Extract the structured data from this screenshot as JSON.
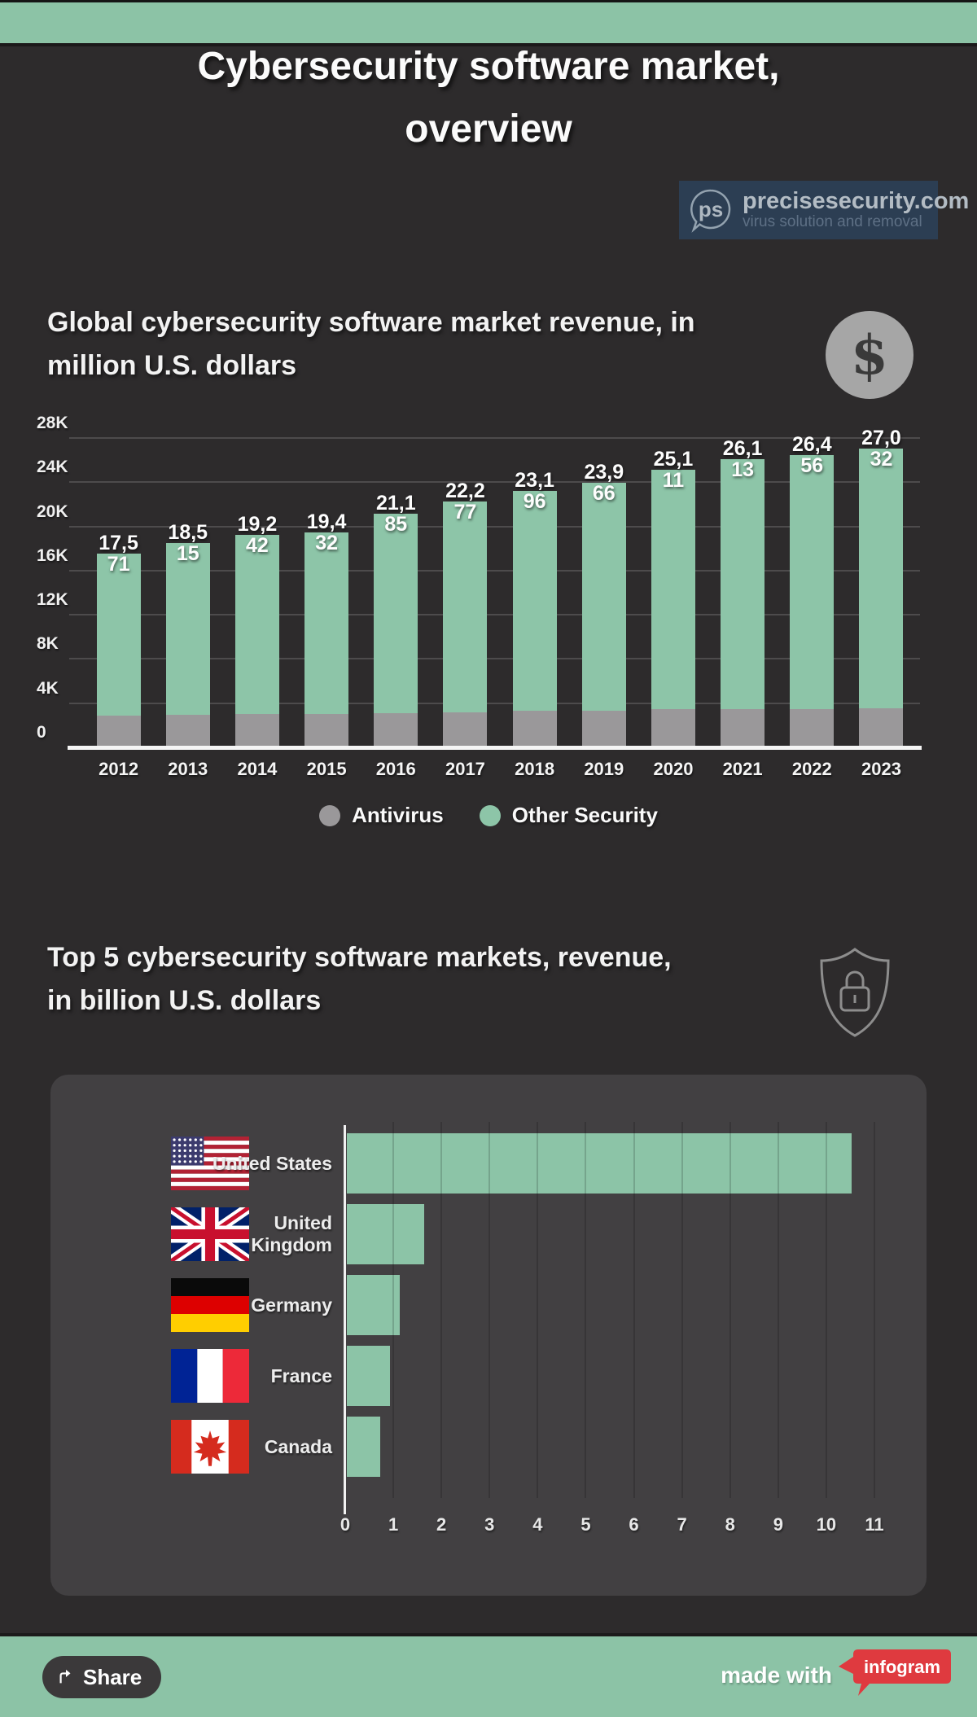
{
  "page": {
    "title": "Cybersecurity software market, overview"
  },
  "logo": {
    "monogram": "ps",
    "domain": "precisesecurity.com",
    "tagline": "virus solution and removal",
    "bg_color": "#2c3e53"
  },
  "section_revenue": {
    "title": "Global cybersecurity software market revenue, in million U.S. dollars",
    "icon": "dollar-icon"
  },
  "section_top5": {
    "title": "Top 5 cybersecurity software markets, revenue, in billion U.S. dollars",
    "icon": "shield-lock-icon"
  },
  "footer": {
    "share_label": "Share",
    "made_with": "made with",
    "badge_label": "infogram",
    "badge_color": "#df3a3f",
    "band_color": "#8cc3a6"
  },
  "chart_data": [
    {
      "type": "bar",
      "stacked": true,
      "title": "Global cybersecurity software market revenue, in million U.S. dollars",
      "categories": [
        "2012",
        "2013",
        "2014",
        "2015",
        "2016",
        "2017",
        "2018",
        "2019",
        "2020",
        "2021",
        "2022",
        "2023"
      ],
      "series": [
        {
          "name": "Antivirus",
          "color": "#9a989a",
          "values": [
            2900,
            2950,
            3000,
            3000,
            3100,
            3200,
            3300,
            3350,
            3450,
            3500,
            3500,
            3550
          ]
        },
        {
          "name": "Other Security",
          "color": "#8dc5a8",
          "values": [
            14671,
            15565,
            16242,
            16432,
            18085,
            19077,
            19896,
            20616,
            21661,
            22613,
            22956,
            23482
          ]
        }
      ],
      "totals": [
        17571,
        18515,
        19242,
        19432,
        21185,
        22277,
        23196,
        23966,
        25111,
        26113,
        26456,
        27032
      ],
      "total_labels": [
        "17,571",
        "18,515",
        "19,242",
        "19,432",
        "21,185",
        "22,277",
        "23,196",
        "23,966",
        "25,111",
        "26,113",
        "26,456",
        "27,032"
      ],
      "ylim": [
        0,
        28000
      ],
      "ytick_values": [
        0,
        4000,
        8000,
        12000,
        16000,
        20000,
        24000,
        28000
      ],
      "ytick_labels": [
        "0",
        "4K",
        "8K",
        "12K",
        "16K",
        "20K",
        "24K",
        "28K"
      ],
      "grid": true,
      "legend_position": "bottom"
    },
    {
      "type": "bar",
      "orientation": "horizontal",
      "title": "Top 5 cybersecurity software markets, revenue, in billion U.S. dollars",
      "categories": [
        "United States",
        "United Kingdom",
        "Germany",
        "France",
        "Canada"
      ],
      "values": [
        10.5,
        1.6,
        1.1,
        0.9,
        0.7
      ],
      "flags": [
        "us",
        "uk",
        "de",
        "fr",
        "ca"
      ],
      "xlim": [
        0,
        11
      ],
      "xticks": [
        0,
        1,
        2,
        3,
        4,
        5,
        6,
        7,
        8,
        9,
        10,
        11
      ],
      "bar_color": "#8cc4a7",
      "grid": true
    }
  ]
}
